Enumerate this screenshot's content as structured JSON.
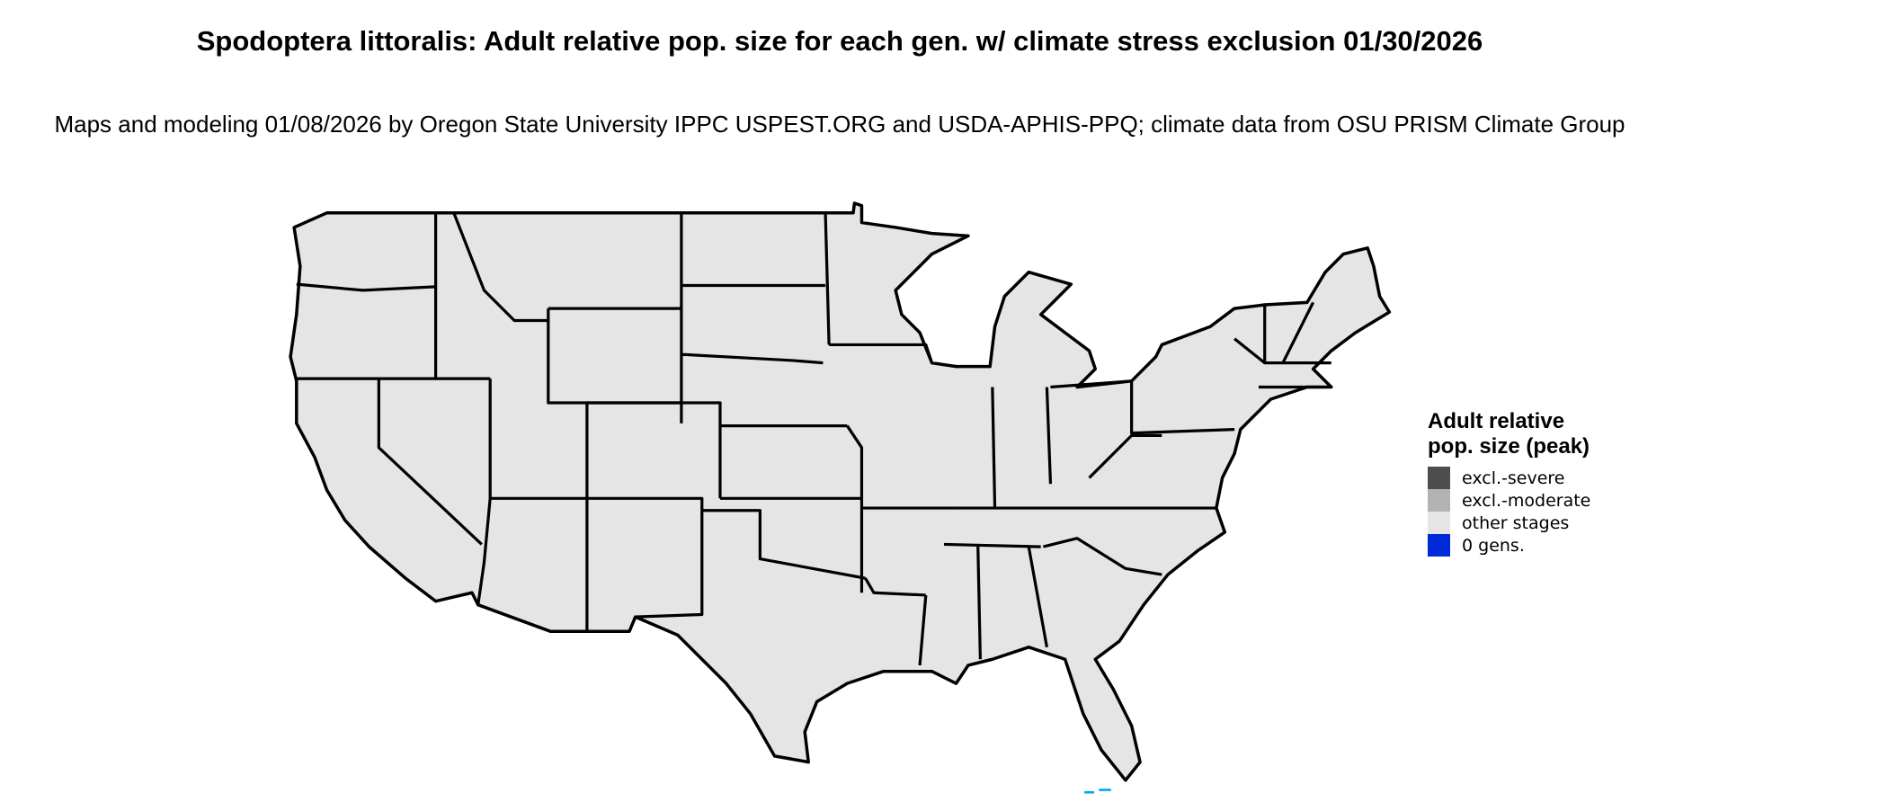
{
  "title": "Spodoptera littoralis: Adult relative pop. size for each gen. w/ climate stress exclusion 01/30/2026",
  "subtitle": "Maps and modeling 01/08/2026 by Oregon State University IPPC USPEST.ORG and USDA-APHIS-PPQ; climate data from OSU PRISM Climate Group",
  "map": {
    "region": "Contiguous United States",
    "fill_color": "#e5e5e5",
    "border_color": "#000000",
    "all_states_category": "other stages"
  },
  "legend": {
    "title": "Adult relative pop. size (peak)",
    "items": [
      {
        "label": "excl.-severe",
        "color": "#4d4d4d"
      },
      {
        "label": "excl.-moderate",
        "color": "#b3b3b3"
      },
      {
        "label": "other stages",
        "color": "#e5e5e5"
      },
      {
        "label": "0 gens.",
        "color": "#0029d9"
      }
    ]
  }
}
